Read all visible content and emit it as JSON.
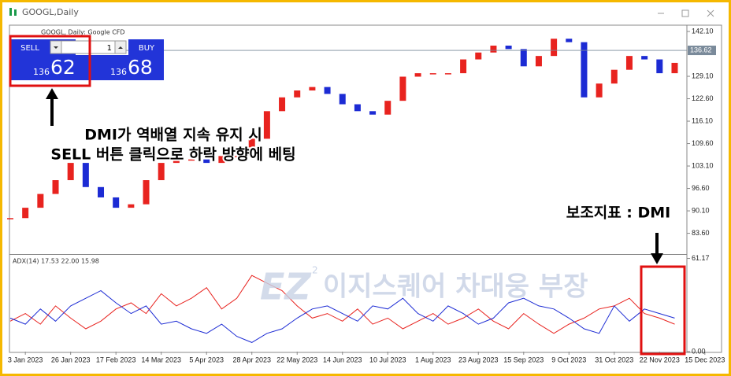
{
  "window_title": "GOOGL,Daily",
  "trade_panel": {
    "sell": "SELL",
    "buy": "BUY",
    "volume": "1",
    "sell_big": "136",
    "sell_pips": "62",
    "buy_big": "136",
    "buy_pips": "68"
  },
  "annotations": {
    "line1": "DMI가 역배열 지속 유지 시",
    "line2": "SELL 버튼 클릭으로 하락 방향에 베팅",
    "indicator_note": "보조지표 : DMI"
  },
  "watermark": {
    "logo": "EZ",
    "superscript": "2",
    "text": "이지스퀘어 차대웅 부장"
  },
  "chart_data": [
    {
      "type": "candlestick",
      "title": "GOOGL, Daily: Google CFD",
      "categories": [
        null,
        "3 Jan 2023",
        null,
        null,
        "26 Jan 2023",
        null,
        null,
        "17 Feb 2023",
        null,
        null,
        "14 Mar 2023",
        null,
        null,
        "5 Apr 2023",
        null,
        null,
        "28 Apr 2023",
        null,
        null,
        "22 May 2023",
        null,
        null,
        "14 Jun 2023",
        null,
        null,
        "10 Jul 2023",
        null,
        null,
        "1 Aug 2023",
        null,
        null,
        "23 Aug 2023",
        null,
        null,
        "15 Sep 2023",
        null,
        null,
        "9 Oct 2023",
        null,
        null,
        "31 Oct 2023",
        null,
        null,
        "22 Nov 2023",
        null,
        null,
        "15 Dec 2023"
      ],
      "values": [
        88,
        91,
        95,
        99,
        104,
        97,
        94,
        91,
        92,
        99,
        104,
        105,
        105,
        104,
        106,
        106,
        111,
        119,
        123,
        125,
        126,
        124,
        121,
        119,
        118,
        122,
        129,
        130,
        130,
        130,
        134,
        136,
        138,
        137,
        132,
        135,
        140,
        139,
        123,
        127,
        131,
        135,
        134,
        130,
        133,
        null,
        null
      ],
      "up_color": "#e8231f",
      "down_color": "#1c2bd4",
      "last_price": 136.62,
      "ylim": [
        77.8,
        143.7
      ],
      "yticks": [
        {
          "value": 142.1,
          "label": "142.10"
        },
        {
          "value": 129.1,
          "label": "129.10"
        },
        {
          "value": 122.6,
          "label": "122.60"
        },
        {
          "value": 116.1,
          "label": "116.10"
        },
        {
          "value": 109.6,
          "label": "109.60"
        },
        {
          "value": 103.1,
          "label": "103.10"
        },
        {
          "value": 96.6,
          "label": "96.60"
        },
        {
          "value": 90.1,
          "label": "90.10"
        },
        {
          "value": 83.6,
          "label": "83.60"
        }
      ]
    },
    {
      "type": "line",
      "title": "ADX(14) 17.53 22.00 15.98",
      "series": [
        {
          "color": "#e8231f",
          "values": [
            20,
            25,
            18,
            30,
            22,
            15,
            20,
            28,
            32,
            25,
            38,
            30,
            35,
            42,
            28,
            35,
            50,
            45,
            40,
            30,
            22,
            25,
            20,
            28,
            18,
            22,
            15,
            20,
            25,
            18,
            22,
            28,
            20,
            15,
            25,
            18,
            12,
            18,
            22,
            28,
            30,
            35,
            25,
            22,
            18,
            null,
            null
          ]
        },
        {
          "color": "#1c2bd4",
          "values": [
            22,
            18,
            28,
            20,
            30,
            35,
            40,
            32,
            25,
            30,
            18,
            20,
            15,
            12,
            18,
            10,
            6,
            12,
            15,
            22,
            28,
            30,
            25,
            20,
            30,
            28,
            35,
            25,
            20,
            30,
            25,
            18,
            22,
            32,
            35,
            30,
            28,
            22,
            15,
            12,
            30,
            20,
            28,
            25,
            22,
            null,
            null
          ]
        }
      ],
      "ylim": [
        0,
        63
      ],
      "yticks": [
        61.17,
        {
          "value": 0,
          "label": "0.00"
        }
      ]
    }
  ]
}
